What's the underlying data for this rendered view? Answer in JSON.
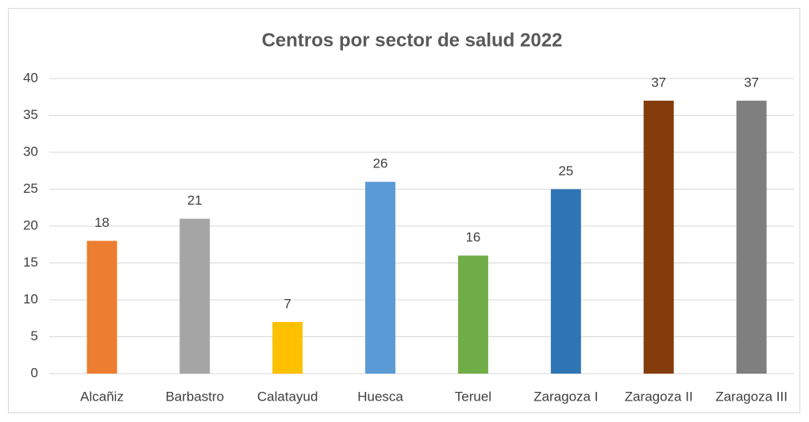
{
  "chart_data": {
    "type": "bar",
    "title": "Centros por sector de salud 2022",
    "categories": [
      "Alcañiz",
      "Barbastro",
      "Calatayud",
      "Huesca",
      "Teruel",
      "Zaragoza I",
      "Zaragoza II",
      "Zaragoza III"
    ],
    "values": [
      18,
      21,
      7,
      26,
      16,
      25,
      37,
      37
    ],
    "colors": [
      "#ED7D31",
      "#A5A5A5",
      "#FFC000",
      "#5B9BD5",
      "#70AD47",
      "#2E75B6",
      "#843C0C",
      "#7F7F7F"
    ],
    "ylim": [
      0,
      40
    ],
    "yticks": [
      0,
      5,
      10,
      15,
      20,
      25,
      30,
      35,
      40
    ],
    "grid": true
  }
}
